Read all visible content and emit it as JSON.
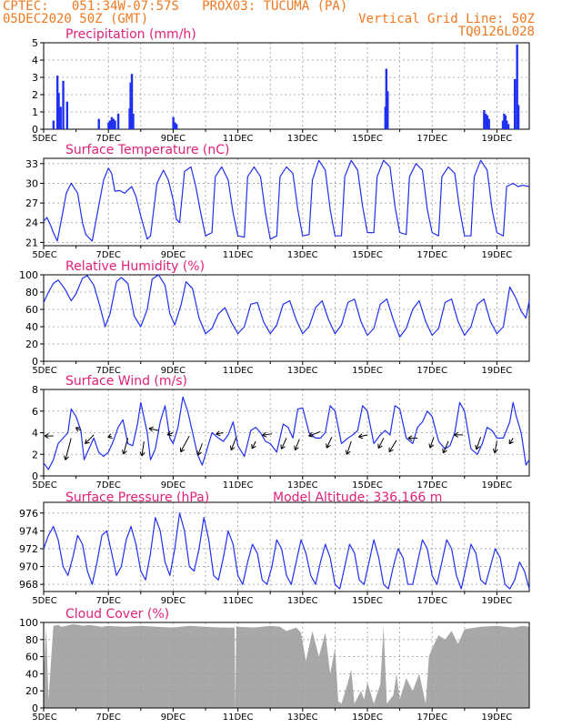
{
  "header": {
    "line1": "CPTEC:   051:34W-07:57S   PROX03: TUCUMA (PA)",
    "line2_left": "05DEC2020 50Z (GMT)",
    "line2_right": "Vertical Grid Line: 50Z",
    "line3_right": "TQ0126L028"
  },
  "colors": {
    "header": "#f07820",
    "title": "#e0207a",
    "series": "#2030f0",
    "cloud": "#a8a8a8",
    "grid": "#9a9a9a"
  },
  "x_tick_labels": [
    "5DEC",
    "7DEC",
    "9DEC",
    "11DEC",
    "13DEC",
    "15DEC",
    "17DEC",
    "19DEC"
  ],
  "panel_titles": {
    "precip": "Precipitation (mm/h)",
    "temp": "Surface Temperature (nC)",
    "rh": "Relative Humidity (%)",
    "wind": "Surface Wind (m/s)",
    "pres": "Surface Pressure (hPa)",
    "pres_extra": "Model Altitude: 336.166 m",
    "cloud": "Cloud Cover (%)"
  },
  "chart_data": [
    {
      "id": "precip",
      "type": "bar",
      "title": "Precipitation (mm/h)",
      "x_unit": "day index from 5DEC 00Z",
      "ylim": [
        0,
        5
      ],
      "yticks": [
        0,
        1,
        2,
        3,
        4,
        5
      ],
      "x": [
        0.3,
        0.42,
        0.46,
        0.52,
        0.6,
        0.72,
        1.7,
        2.0,
        2.05,
        2.1,
        2.15,
        2.2,
        2.3,
        2.65,
        2.68,
        2.72,
        2.76,
        4.0,
        4.05,
        4.1,
        10.55,
        10.58,
        10.62,
        13.6,
        13.65,
        13.7,
        13.75,
        14.18,
        14.22,
        14.26,
        14.3,
        14.35,
        14.55,
        14.62,
        14.66
      ],
      "y": [
        0.5,
        3.1,
        2.1,
        1.3,
        2.8,
        1.6,
        0.6,
        0.4,
        0.5,
        0.7,
        0.6,
        0.5,
        0.9,
        1.2,
        2.7,
        3.2,
        0.9,
        0.7,
        0.4,
        0.3,
        1.3,
        3.5,
        2.2,
        1.1,
        0.9,
        0.8,
        0.6,
        0.5,
        0.9,
        0.8,
        0.5,
        0.3,
        2.9,
        4.9,
        1.4
      ]
    },
    {
      "id": "temp",
      "type": "line",
      "title": "Surface Temperature (nC)",
      "ylim": [
        20.5,
        33.8
      ],
      "yticks": [
        21,
        24,
        27,
        30,
        33
      ],
      "x": [
        0,
        0.1,
        0.2,
        0.3,
        0.42,
        0.55,
        0.7,
        0.85,
        1.05,
        1.2,
        1.3,
        1.5,
        1.7,
        1.85,
        2.0,
        2.1,
        2.2,
        2.35,
        2.5,
        2.72,
        2.85,
        3.0,
        3.2,
        3.3,
        3.5,
        3.7,
        3.85,
        4.0,
        4.1,
        4.2,
        4.35,
        4.55,
        4.7,
        4.85,
        5.0,
        5.2,
        5.3,
        5.5,
        5.7,
        5.85,
        6.0,
        6.2,
        6.3,
        6.5,
        6.7,
        6.85,
        7.0,
        7.2,
        7.3,
        7.5,
        7.7,
        7.85,
        8.0,
        8.2,
        8.3,
        8.5,
        8.7,
        8.85,
        9.0,
        9.2,
        9.3,
        9.5,
        9.7,
        9.85,
        10.0,
        10.2,
        10.3,
        10.5,
        10.7,
        10.85,
        11.0,
        11.2,
        11.3,
        11.5,
        11.7,
        11.85,
        12.0,
        12.2,
        12.3,
        12.5,
        12.7,
        12.85,
        13.0,
        13.2,
        13.3,
        13.5,
        13.7,
        13.85,
        14.0,
        14.2,
        14.3,
        14.5,
        14.65,
        14.8,
        15.0
      ],
      "y": [
        24.2,
        24.8,
        23.8,
        22.5,
        21.2,
        24.5,
        28.5,
        30.0,
        28.5,
        24.0,
        22.2,
        21.2,
        26.5,
        30.5,
        32.3,
        31.5,
        28.8,
        28.9,
        28.5,
        29.5,
        28.0,
        25.0,
        21.5,
        22.0,
        30.0,
        32.0,
        30.5,
        27.5,
        24.5,
        24.0,
        31.8,
        32.5,
        29.5,
        25.5,
        22.0,
        22.5,
        31.0,
        32.5,
        30.5,
        25.5,
        22.0,
        21.8,
        31.0,
        32.5,
        31.0,
        25.5,
        21.5,
        22.0,
        31.0,
        32.5,
        31.5,
        26.0,
        22.0,
        22.2,
        30.5,
        33.5,
        32.0,
        26.0,
        22.0,
        22.0,
        31.0,
        33.5,
        32.0,
        26.5,
        22.5,
        22.5,
        31.0,
        33.5,
        32.5,
        26.5,
        22.5,
        22.2,
        31.0,
        33.0,
        32.0,
        26.0,
        22.5,
        22.0,
        31.0,
        32.5,
        31.5,
        26.0,
        22.0,
        22.0,
        31.0,
        33.5,
        32.0,
        26.0,
        22.5,
        22.0,
        29.5,
        30.0,
        29.5,
        29.7,
        29.5
      ]
    },
    {
      "id": "rh",
      "type": "line",
      "title": "Relative Humidity (%)",
      "ylim": [
        0,
        100
      ],
      "yticks": [
        0,
        20,
        40,
        60,
        80,
        100
      ],
      "x": [
        0,
        0.15,
        0.3,
        0.45,
        0.65,
        0.85,
        1.0,
        1.2,
        1.35,
        1.55,
        1.75,
        1.9,
        2.05,
        2.25,
        2.4,
        2.6,
        2.8,
        3.0,
        3.2,
        3.35,
        3.55,
        3.75,
        3.9,
        4.05,
        4.25,
        4.4,
        4.6,
        4.8,
        5.0,
        5.2,
        5.4,
        5.6,
        5.8,
        6.0,
        6.2,
        6.4,
        6.6,
        6.8,
        7.0,
        7.2,
        7.4,
        7.6,
        7.8,
        8.0,
        8.2,
        8.4,
        8.6,
        8.8,
        9.0,
        9.2,
        9.4,
        9.6,
        9.8,
        10.0,
        10.2,
        10.4,
        10.6,
        10.8,
        11.0,
        11.2,
        11.4,
        11.6,
        11.8,
        12.0,
        12.2,
        12.4,
        12.6,
        12.8,
        13.0,
        13.2,
        13.4,
        13.6,
        13.8,
        14.0,
        14.2,
        14.4,
        14.6,
        14.75,
        14.9,
        15.0
      ],
      "y": [
        68,
        80,
        90,
        94,
        84,
        70,
        78,
        96,
        99,
        88,
        62,
        40,
        55,
        92,
        97,
        90,
        52,
        40,
        60,
        95,
        100,
        88,
        55,
        42,
        66,
        92,
        84,
        50,
        32,
        38,
        55,
        62,
        45,
        32,
        40,
        66,
        68,
        45,
        32,
        42,
        66,
        70,
        48,
        32,
        40,
        62,
        70,
        48,
        32,
        42,
        68,
        72,
        46,
        30,
        38,
        66,
        72,
        48,
        28,
        38,
        60,
        70,
        46,
        30,
        38,
        68,
        72,
        46,
        30,
        40,
        66,
        72,
        46,
        32,
        40,
        86,
        72,
        58,
        50,
        70
      ]
    },
    {
      "id": "wind",
      "type": "line",
      "title": "Surface Wind (m/s)",
      "ylim": [
        0,
        8
      ],
      "yticks": [
        0,
        2,
        4,
        6,
        8
      ],
      "x": [
        0,
        0.15,
        0.3,
        0.45,
        0.6,
        0.75,
        0.85,
        1.0,
        1.15,
        1.25,
        1.4,
        1.55,
        1.7,
        1.85,
        2.0,
        2.15,
        2.3,
        2.45,
        2.6,
        2.75,
        2.9,
        3.0,
        3.2,
        3.3,
        3.45,
        3.6,
        3.75,
        3.9,
        4.0,
        4.15,
        4.3,
        4.45,
        4.6,
        4.75,
        4.9,
        5.0,
        5.2,
        5.4,
        5.55,
        5.7,
        5.85,
        6.0,
        6.2,
        6.4,
        6.55,
        6.7,
        6.85,
        7.0,
        7.2,
        7.4,
        7.55,
        7.7,
        7.85,
        8.0,
        8.2,
        8.4,
        8.55,
        8.7,
        8.85,
        9.0,
        9.2,
        9.4,
        9.55,
        9.7,
        9.85,
        10.0,
        10.2,
        10.4,
        10.55,
        10.7,
        10.85,
        11.0,
        11.2,
        11.4,
        11.55,
        11.7,
        11.85,
        12.0,
        12.2,
        12.4,
        12.55,
        12.7,
        12.85,
        13.0,
        13.2,
        13.4,
        13.55,
        13.7,
        13.85,
        14.0,
        14.2,
        14.4,
        14.5,
        14.6,
        14.75,
        14.9,
        15.0
      ],
      "y": [
        1.2,
        0.6,
        1.5,
        3.0,
        3.5,
        4.0,
        6.2,
        5.5,
        4.2,
        1.5,
        2.5,
        3.5,
        2.2,
        1.8,
        2.2,
        3.2,
        4.5,
        5.2,
        3.0,
        2.8,
        4.8,
        6.8,
        4.0,
        1.5,
        2.5,
        5.0,
        6.5,
        3.5,
        3.0,
        4.5,
        7.3,
        6.0,
        4.0,
        2.0,
        1.0,
        2.0,
        4.0,
        3.5,
        3.2,
        3.8,
        5.0,
        2.8,
        1.8,
        4.2,
        4.5,
        4.0,
        3.2,
        3.0,
        2.2,
        4.8,
        4.5,
        3.5,
        6.2,
        6.3,
        4.0,
        3.5,
        3.5,
        4.0,
        6.5,
        6.0,
        3.0,
        3.5,
        3.8,
        4.2,
        6.5,
        6.0,
        3.0,
        3.8,
        4.2,
        3.8,
        6.5,
        6.2,
        3.5,
        3.0,
        4.5,
        5.0,
        6.0,
        5.5,
        3.2,
        2.5,
        2.8,
        4.0,
        6.8,
        6.0,
        2.5,
        2.0,
        3.0,
        4.5,
        4.2,
        3.5,
        3.5,
        5.0,
        6.8,
        5.5,
        4.0,
        1.0,
        1.5
      ]
    },
    {
      "id": "pres",
      "type": "line",
      "title": "Surface Pressure (hPa)",
      "ylim": [
        967.2,
        977.2
      ],
      "yticks": [
        968,
        970,
        972,
        974,
        976
      ],
      "x": [
        0,
        0.15,
        0.3,
        0.45,
        0.6,
        0.75,
        0.9,
        1.05,
        1.2,
        1.35,
        1.5,
        1.65,
        1.8,
        1.95,
        2.1,
        2.25,
        2.4,
        2.55,
        2.7,
        2.85,
        3.0,
        3.15,
        3.3,
        3.45,
        3.6,
        3.75,
        3.9,
        4.05,
        4.2,
        4.35,
        4.5,
        4.65,
        4.8,
        4.95,
        5.1,
        5.25,
        5.4,
        5.55,
        5.7,
        5.85,
        6.0,
        6.15,
        6.3,
        6.45,
        6.6,
        6.75,
        6.9,
        7.05,
        7.2,
        7.35,
        7.5,
        7.65,
        7.8,
        7.95,
        8.1,
        8.25,
        8.4,
        8.55,
        8.7,
        8.85,
        9.0,
        9.15,
        9.3,
        9.45,
        9.6,
        9.75,
        9.9,
        10.05,
        10.2,
        10.35,
        10.5,
        10.65,
        10.8,
        10.95,
        11.1,
        11.25,
        11.4,
        11.55,
        11.7,
        11.85,
        12.0,
        12.15,
        12.3,
        12.45,
        12.6,
        12.75,
        12.9,
        13.05,
        13.2,
        13.35,
        13.5,
        13.65,
        13.8,
        13.95,
        14.1,
        14.25,
        14.4,
        14.55,
        14.7,
        14.85,
        15.0
      ],
      "y": [
        972.0,
        973.5,
        974.5,
        973.0,
        970.0,
        969.0,
        971.0,
        973.5,
        972.5,
        969.5,
        968.0,
        970.5,
        973.5,
        974.0,
        971.5,
        969.0,
        970.0,
        973.0,
        974.5,
        972.5,
        969.5,
        968.5,
        971.5,
        975.5,
        974.0,
        970.5,
        969.0,
        972.0,
        976.0,
        974.0,
        970.0,
        969.5,
        972.0,
        975.5,
        973.0,
        969.0,
        968.5,
        971.0,
        974.0,
        972.5,
        969.0,
        968.0,
        970.5,
        972.5,
        971.5,
        968.5,
        968.0,
        970.0,
        973.0,
        972.0,
        969.0,
        968.0,
        970.5,
        973.0,
        971.5,
        969.0,
        968.0,
        970.5,
        972.5,
        971.0,
        968.0,
        967.5,
        970.0,
        972.5,
        971.5,
        968.5,
        968.0,
        970.5,
        973.0,
        971.0,
        968.0,
        967.5,
        970.0,
        972.0,
        971.0,
        968.0,
        968.0,
        970.5,
        973.0,
        972.0,
        969.0,
        968.0,
        970.5,
        973.0,
        972.0,
        969.0,
        967.5,
        970.0,
        972.5,
        971.5,
        968.5,
        968.0,
        970.0,
        972.0,
        971.0,
        968.0,
        967.5,
        968.5,
        970.5,
        969.5,
        967.5
      ]
    },
    {
      "id": "cloud",
      "type": "area",
      "title": "Cloud Cover (%)",
      "ylim": [
        0,
        100
      ],
      "yticks": [
        0,
        20,
        40,
        60,
        80,
        100
      ],
      "x": [
        0,
        0.08,
        0.15,
        0.3,
        0.45,
        0.55,
        0.7,
        0.9,
        1.1,
        1.2,
        1.4,
        1.6,
        1.8,
        2.0,
        2.5,
        3.0,
        3.5,
        4.0,
        4.5,
        5.0,
        5.5,
        5.9,
        5.92,
        5.95,
        6.0,
        6.5,
        7.0,
        7.3,
        7.5,
        7.8,
        7.95,
        8.1,
        8.3,
        8.5,
        8.7,
        8.85,
        9.0,
        9.1,
        9.2,
        9.4,
        9.5,
        9.6,
        9.8,
        9.9,
        10.0,
        10.2,
        10.4,
        10.5,
        10.6,
        10.8,
        10.9,
        11.0,
        11.2,
        11.4,
        11.6,
        11.8,
        11.9,
        12.0,
        12.2,
        12.4,
        12.6,
        12.8,
        13.0,
        13.5,
        14.0,
        14.5,
        14.8,
        15.0
      ],
      "y": [
        38,
        95,
        10,
        96,
        97,
        95,
        96,
        98,
        97,
        96,
        97,
        96,
        95,
        96,
        95,
        96,
        95,
        94,
        96,
        95,
        94,
        94,
        0,
        96,
        95,
        94,
        96,
        95,
        90,
        94,
        88,
        55,
        90,
        60,
        88,
        40,
        70,
        8,
        5,
        30,
        45,
        5,
        20,
        10,
        30,
        5,
        28,
        95,
        5,
        15,
        40,
        10,
        35,
        20,
        40,
        5,
        60,
        70,
        85,
        80,
        90,
        75,
        92,
        95,
        96,
        94,
        96,
        95
      ]
    }
  ],
  "wind_vectors": {
    "x": [
      0.3,
      0.85,
      1.15,
      1.55,
      2.1,
      2.6,
      3.1,
      3.55,
      4.0,
      4.5,
      4.9,
      5.55,
      5.95,
      6.55,
      7.05,
      7.5,
      7.9,
      8.55,
      8.9,
      9.5,
      10.0,
      10.5,
      10.9,
      11.55,
      12.05,
      12.5,
      12.95,
      13.5,
      14.0,
      14.5
    ],
    "y": [
      3.7,
      3.5,
      4.2,
      3.8,
      3.7,
      3.5,
      3.2,
      4.2,
      4.0,
      3.7,
      3.0,
      4.0,
      3.6,
      3.2,
      3.9,
      3.5,
      3.4,
      4.1,
      3.6,
      3.2,
      3.8,
      3.5,
      3.3,
      3.5,
      3.6,
      3.2,
      3.8,
      3.6,
      3.2,
      3.5
    ],
    "u": [
      -1.2,
      -0.8,
      -0.7,
      -1.2,
      -0.5,
      -0.6,
      -0.3,
      -1.3,
      -0.8,
      -1.2,
      -0.6,
      -1.0,
      -0.7,
      -0.5,
      -1.3,
      -0.7,
      -0.6,
      -1.6,
      -0.7,
      -0.6,
      -1.2,
      -0.7,
      -1.0,
      -1.3,
      -0.5,
      -0.7,
      -1.2,
      -0.6,
      -0.3,
      -0.5
    ],
    "v": [
      0,
      -3.0,
      0.4,
      -1.2,
      -0.2,
      -2.2,
      -2.0,
      0.3,
      -0.3,
      -2.2,
      -1.6,
      -0.2,
      -1.8,
      -1.0,
      -0.2,
      -1.5,
      -1.5,
      -0.6,
      -1.5,
      -1.8,
      -0.3,
      -1.4,
      -1.6,
      0,
      -1.5,
      -1.6,
      0,
      -1.7,
      -1.6,
      -0.8
    ]
  }
}
